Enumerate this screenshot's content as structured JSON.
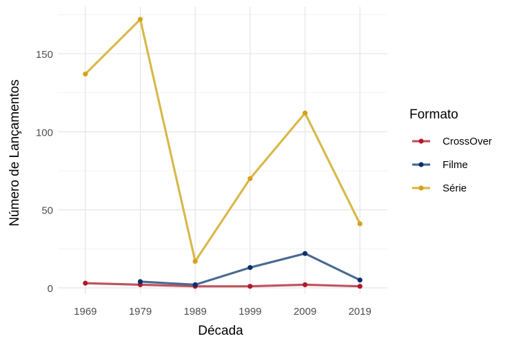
{
  "chart_data": {
    "type": "line",
    "title": "",
    "xlabel": "Década",
    "ylabel": "Número de Lançamentos",
    "x": [
      1969,
      1979,
      1989,
      1999,
      2009,
      2019
    ],
    "x_tick_labels": [
      "1969",
      "1979",
      "1989",
      "1999",
      "2009",
      "2019"
    ],
    "y_ticks": [
      0,
      50,
      100,
      150
    ],
    "y_tick_labels": [
      "0",
      "50",
      "100",
      "150"
    ],
    "xlim": [
      1964,
      2024
    ],
    "ylim": [
      -4,
      180
    ],
    "grid": true,
    "legend": {
      "title": "Formato",
      "position": "right"
    },
    "series": [
      {
        "name": "CrossOver",
        "color": "#b2182b",
        "line_color": "#c0535e",
        "x": [
          1969,
          1979,
          1989,
          1999,
          2009,
          2019
        ],
        "values": [
          3,
          2,
          1,
          1,
          2,
          1
        ]
      },
      {
        "name": "Filme",
        "color": "#08306b",
        "line_color": "#4a6a90",
        "x": [
          1979,
          1989,
          1999,
          2009,
          2019
        ],
        "values": [
          4,
          2,
          13,
          22,
          5
        ]
      },
      {
        "name": "Série",
        "color": "#d4a21a",
        "line_color": "#d9b84a",
        "x": [
          1969,
          1979,
          1989,
          1999,
          2009,
          2019
        ],
        "values": [
          137,
          172,
          17,
          70,
          112,
          41
        ]
      }
    ]
  }
}
